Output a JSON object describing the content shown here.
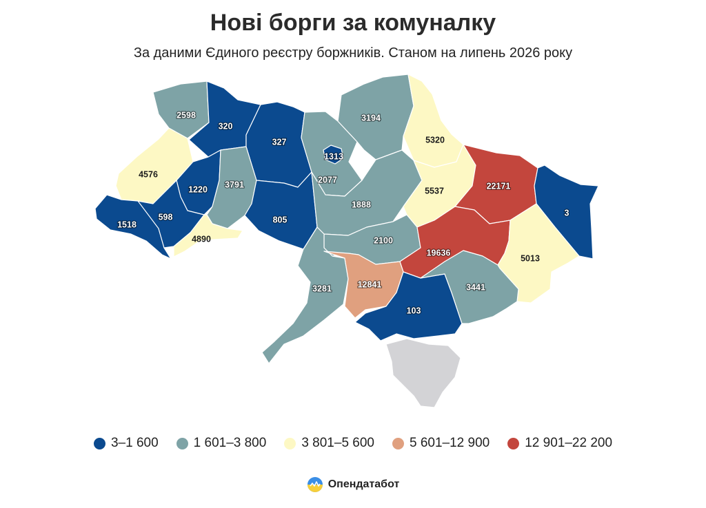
{
  "header": {
    "title": "Нові борги за комуналку",
    "subtitle": "За даними Єдиного реєстру боржників. Станом на липень 2026 року"
  },
  "colors": {
    "cat1": "#0b4a8f",
    "cat2": "#7ea3a6",
    "cat3": "#fdf8c4",
    "cat4": "#e0a07f",
    "cat5": "#c3463d",
    "occupied": "#d3d3d6",
    "white_label": "#ffffff",
    "dark_label": "#1c1c1c"
  },
  "regions": [
    {
      "id": "volyn",
      "value": "2598",
      "cat": "cat2"
    },
    {
      "id": "rivne",
      "value": "320",
      "cat": "cat1"
    },
    {
      "id": "zhytomyr",
      "value": "327",
      "cat": "cat1"
    },
    {
      "id": "kyiv_oblast",
      "value": "2077",
      "cat": "cat2"
    },
    {
      "id": "kyiv_city",
      "value": "1313",
      "cat": "cat1"
    },
    {
      "id": "chernihiv",
      "value": "3194",
      "cat": "cat2"
    },
    {
      "id": "sumy",
      "value": "5320",
      "cat": "cat3"
    },
    {
      "id": "lviv",
      "value": "4576",
      "cat": "cat3"
    },
    {
      "id": "ternopil",
      "value": "1220",
      "cat": "cat1"
    },
    {
      "id": "khmelnytskyi",
      "value": "3791",
      "cat": "cat2"
    },
    {
      "id": "vinnytsia",
      "value": "805",
      "cat": "cat1"
    },
    {
      "id": "cherkasy",
      "value": "1888",
      "cat": "cat2"
    },
    {
      "id": "poltava",
      "value": "5537",
      "cat": "cat3"
    },
    {
      "id": "kharkiv",
      "value": "22171",
      "cat": "cat5"
    },
    {
      "id": "luhansk",
      "value": "3",
      "cat": "cat1"
    },
    {
      "id": "zakarpattia",
      "value": "1518",
      "cat": "cat1"
    },
    {
      "id": "ivano_frankivsk",
      "value": "598",
      "cat": "cat1"
    },
    {
      "id": "chernivtsi",
      "value": "4890",
      "cat": "cat3"
    },
    {
      "id": "kirovohrad",
      "value": "2100",
      "cat": "cat2"
    },
    {
      "id": "dnipro",
      "value": "19636",
      "cat": "cat5"
    },
    {
      "id": "donetsk",
      "value": "5013",
      "cat": "cat3"
    },
    {
      "id": "odesa",
      "value": "3281",
      "cat": "cat2"
    },
    {
      "id": "mykolaiv",
      "value": "12841",
      "cat": "cat4"
    },
    {
      "id": "kherson",
      "value": "103",
      "cat": "cat1"
    },
    {
      "id": "zaporizhzhia",
      "value": "3441",
      "cat": "cat2"
    },
    {
      "id": "crimea",
      "value": "",
      "cat": "occupied"
    }
  ],
  "legend": [
    {
      "label": "3–1 600",
      "color": "#0b4a8f"
    },
    {
      "label": "1 601–3 800",
      "color": "#7ea3a6"
    },
    {
      "label": "3 801–5 600",
      "color": "#fdf8c4"
    },
    {
      "label": "5 601–12 900",
      "color": "#e0a07f"
    },
    {
      "label": "12 901–22 200",
      "color": "#c3463d"
    }
  ],
  "brand": {
    "name": "Опендатабот"
  }
}
